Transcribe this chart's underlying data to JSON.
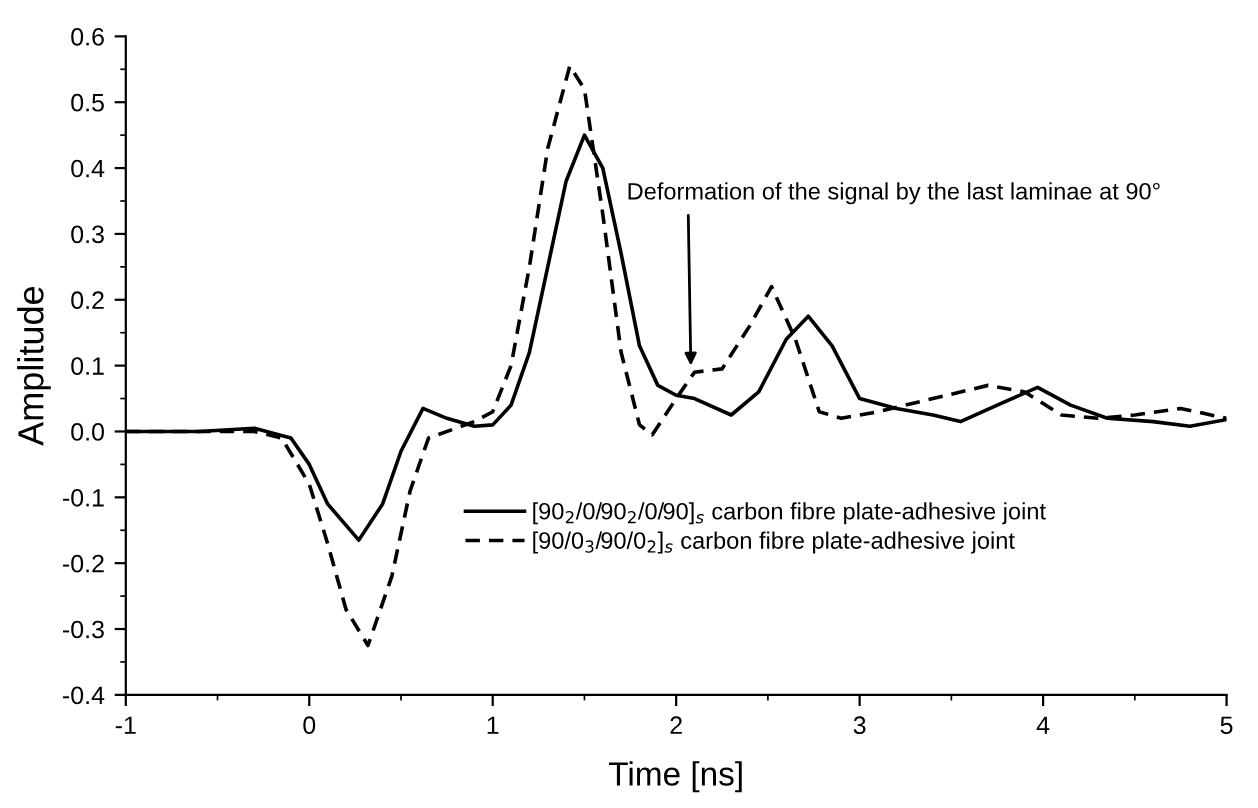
{
  "chart_data": {
    "type": "line",
    "xlabel": "Time [ns]",
    "ylabel": "Amplitude",
    "xlim": [
      -1,
      5
    ],
    "ylim": [
      -0.4,
      0.6
    ],
    "xticks": [
      -1,
      0,
      1,
      2,
      3,
      4,
      5
    ],
    "yticks": [
      {
        "value": -0.4,
        "label": "-0.4"
      },
      {
        "value": -0.3,
        "label": "-0.3"
      },
      {
        "value": -0.2,
        "label": "-0.2"
      },
      {
        "value": -0.1,
        "label": "-0.1"
      },
      {
        "value": 0,
        "label": "0.0"
      },
      0.1,
      0.2,
      0.3,
      0.4,
      0.5,
      0.6
    ],
    "legend": "bottom right",
    "grid": false,
    "annotations": [
      {
        "text": "Deformation of the signal by the last laminae at 90°",
        "x": 2.08,
        "y": 0.1
      }
    ],
    "series": [
      {
        "name": "[90$_{2}$/0/90$_{2}$/0/90]$_{s}$ carbon fibre plate-adhesive joint",
        "color": "#000000",
        "line_style": "solid",
        "x": [
          -1,
          -0.6,
          -0.3,
          -0.1,
          0,
          0.1,
          0.27,
          0.4,
          0.5,
          0.62,
          0.75,
          0.9,
          1.0,
          1.1,
          1.2,
          1.3,
          1.4,
          1.5,
          1.6,
          1.7,
          1.8,
          1.9,
          2.0,
          2.1,
          2.3,
          2.45,
          2.6,
          2.72,
          2.85,
          3.0,
          3.2,
          3.4,
          3.55,
          3.75,
          3.97,
          4.15,
          4.35,
          4.6,
          4.8,
          5.0
        ],
        "values": [
          0,
          0,
          0.005,
          -0.01,
          -0.05,
          -0.11,
          -0.165,
          -0.11,
          -0.03,
          0.035,
          0.02,
          0.008,
          0.01,
          0.04,
          0.12,
          0.25,
          0.38,
          0.45,
          0.4,
          0.27,
          0.13,
          0.07,
          0.055,
          0.05,
          0.025,
          0.06,
          0.14,
          0.175,
          0.13,
          0.05,
          0.035,
          0.025,
          0.015,
          0.04,
          0.067,
          0.04,
          0.02,
          0.015,
          0.008,
          0.018
        ]
      },
      {
        "name": "[90/0$_{3}$/90/0$_{2}$]$_{s}$ carbon fibre plate-adhesive joint",
        "color": "#000000",
        "line_style": "dashed",
        "x": [
          -1,
          -0.6,
          -0.3,
          -0.15,
          0,
          0.1,
          0.2,
          0.32,
          0.45,
          0.55,
          0.65,
          0.8,
          0.9,
          1.0,
          1.1,
          1.2,
          1.3,
          1.42,
          1.5,
          1.6,
          1.7,
          1.8,
          1.87,
          2.0,
          2.1,
          2.25,
          2.4,
          2.52,
          2.65,
          2.78,
          2.9,
          3.1,
          3.4,
          3.7,
          3.9,
          4.1,
          4.3,
          4.5,
          4.75,
          5.0
        ],
        "values": [
          0,
          0,
          0,
          -0.01,
          -0.08,
          -0.17,
          -0.27,
          -0.325,
          -0.22,
          -0.09,
          -0.01,
          0.005,
          0.015,
          0.03,
          0.1,
          0.25,
          0.43,
          0.555,
          0.52,
          0.33,
          0.12,
          0.01,
          -0.005,
          0.05,
          0.09,
          0.095,
          0.16,
          0.22,
          0.14,
          0.03,
          0.02,
          0.03,
          0.05,
          0.07,
          0.06,
          0.025,
          0.02,
          0.025,
          0.035,
          0.02
        ]
      }
    ]
  }
}
